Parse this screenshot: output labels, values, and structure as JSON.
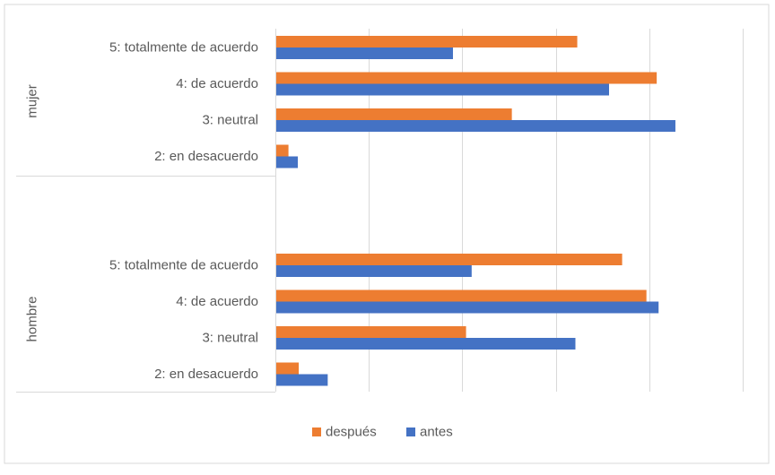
{
  "chart_data": {
    "type": "bar",
    "orientation": "horizontal",
    "groups": [
      {
        "name": "mujer",
        "categories": [
          "5: totalmente de acuerdo",
          "4: de acuerdo",
          "3: neutral",
          "2: en desacuerdo"
        ],
        "series": [
          {
            "name": "después",
            "values": [
              32.3,
              40.8,
              25.3,
              1.4
            ]
          },
          {
            "name": "antes",
            "values": [
              19.0,
              35.7,
              42.8,
              2.4
            ]
          }
        ]
      },
      {
        "name": "hombre",
        "categories": [
          "5: totalmente de acuerdo",
          "4: de acuerdo",
          "3: neutral",
          "2: en desacuerdo"
        ],
        "series": [
          {
            "name": "después",
            "values": [
              37.1,
              39.7,
              20.4,
              2.5
            ]
          },
          {
            "name": "antes",
            "values": [
              21.0,
              41.0,
              32.1,
              5.6
            ]
          }
        ]
      }
    ],
    "legend": [
      "después",
      "antes"
    ],
    "legend_position": "bottom",
    "xlim": [
      0,
      50
    ],
    "x_major_unit": 10,
    "x_tick_labels_visible": false,
    "grid": true,
    "colors": {
      "después": "#ED7D31",
      "antes": "#4472C4"
    },
    "title": "",
    "xlabel": "",
    "ylabel": ""
  }
}
